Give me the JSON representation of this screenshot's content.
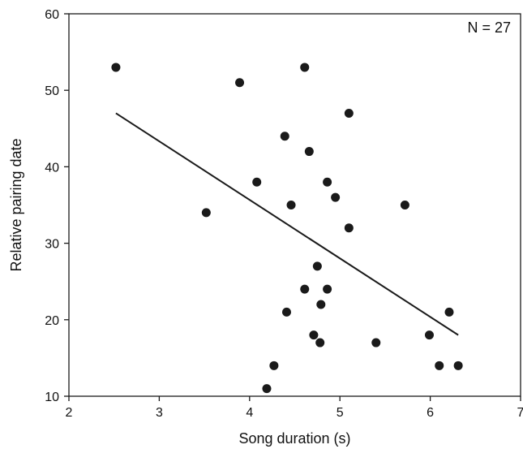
{
  "chart_data": {
    "type": "scatter",
    "title": "",
    "xlabel": "Song duration (s)",
    "ylabel": "Relative pairing date",
    "xlim": [
      2,
      7
    ],
    "ylim": [
      10,
      60
    ],
    "xticks": [
      2,
      3,
      4,
      5,
      6,
      7
    ],
    "yticks": [
      10,
      20,
      30,
      40,
      50,
      60
    ],
    "grid": false,
    "annotation": "N = 27",
    "points": [
      {
        "x": 2.52,
        "y": 53
      },
      {
        "x": 3.52,
        "y": 34
      },
      {
        "x": 3.89,
        "y": 51
      },
      {
        "x": 4.08,
        "y": 38
      },
      {
        "x": 4.19,
        "y": 11
      },
      {
        "x": 4.27,
        "y": 14
      },
      {
        "x": 4.39,
        "y": 44
      },
      {
        "x": 4.41,
        "y": 21
      },
      {
        "x": 4.46,
        "y": 35
      },
      {
        "x": 4.61,
        "y": 53
      },
      {
        "x": 4.61,
        "y": 24
      },
      {
        "x": 4.66,
        "y": 42
      },
      {
        "x": 4.71,
        "y": 18
      },
      {
        "x": 4.75,
        "y": 27
      },
      {
        "x": 4.78,
        "y": 17
      },
      {
        "x": 4.79,
        "y": 22
      },
      {
        "x": 4.86,
        "y": 38
      },
      {
        "x": 4.86,
        "y": 24
      },
      {
        "x": 4.95,
        "y": 36
      },
      {
        "x": 5.1,
        "y": 47
      },
      {
        "x": 5.1,
        "y": 32
      },
      {
        "x": 5.4,
        "y": 17
      },
      {
        "x": 5.72,
        "y": 35
      },
      {
        "x": 5.99,
        "y": 18
      },
      {
        "x": 6.1,
        "y": 14
      },
      {
        "x": 6.21,
        "y": 21
      },
      {
        "x": 6.31,
        "y": 14
      }
    ],
    "regression_line": {
      "x": [
        2.52,
        6.31
      ],
      "y": [
        47,
        18
      ]
    },
    "colors": {
      "points": "#1a1a1a",
      "line": "#1a1a1a",
      "axes": "#1a1a1a"
    }
  }
}
